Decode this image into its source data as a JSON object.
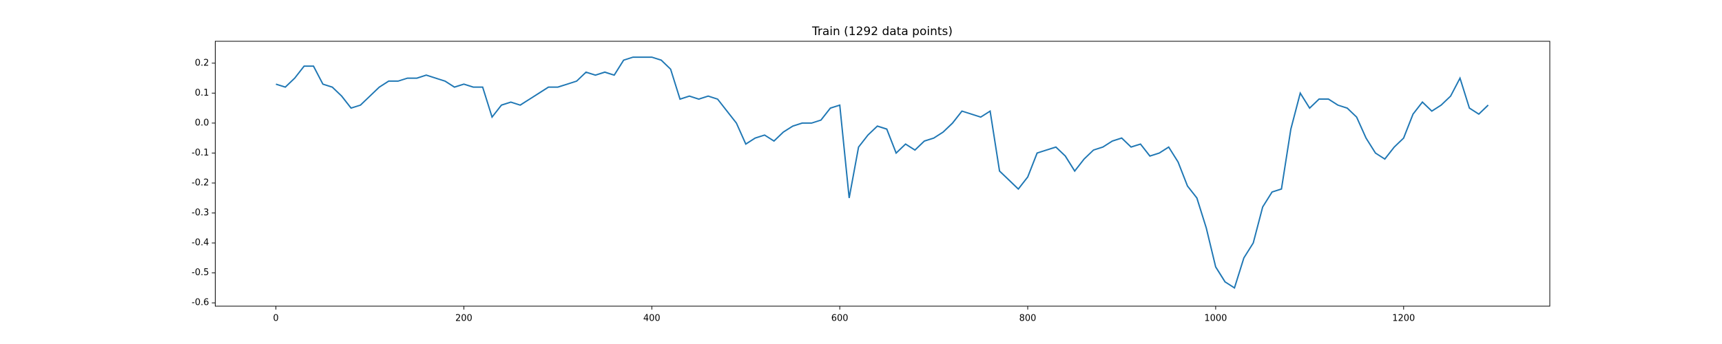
{
  "chart_data": {
    "type": "line",
    "title": "Train (1292 data points)",
    "color": "#1f77b4",
    "x": [
      0,
      10,
      20,
      30,
      40,
      50,
      60,
      70,
      80,
      90,
      100,
      110,
      120,
      130,
      140,
      150,
      160,
      170,
      180,
      190,
      200,
      210,
      220,
      230,
      240,
      250,
      260,
      270,
      280,
      290,
      300,
      310,
      320,
      330,
      340,
      350,
      360,
      370,
      380,
      390,
      400,
      410,
      420,
      430,
      440,
      450,
      460,
      470,
      480,
      490,
      500,
      510,
      520,
      530,
      540,
      550,
      560,
      570,
      580,
      590,
      600,
      610,
      620,
      630,
      640,
      650,
      660,
      670,
      680,
      690,
      700,
      710,
      720,
      730,
      740,
      750,
      760,
      770,
      780,
      790,
      800,
      810,
      820,
      830,
      840,
      850,
      860,
      870,
      880,
      890,
      900,
      910,
      920,
      930,
      940,
      950,
      960,
      970,
      980,
      990,
      1000,
      1010,
      1020,
      1030,
      1040,
      1050,
      1060,
      1070,
      1080,
      1090,
      1100,
      1110,
      1120,
      1130,
      1140,
      1150,
      1160,
      1170,
      1180,
      1190,
      1200,
      1210,
      1220,
      1230,
      1240,
      1250,
      1260,
      1270,
      1280,
      1290
    ],
    "values": [
      0.13,
      0.12,
      0.15,
      0.19,
      0.19,
      0.13,
      0.12,
      0.09,
      0.05,
      0.06,
      0.09,
      0.12,
      0.14,
      0.14,
      0.15,
      0.15,
      0.16,
      0.15,
      0.14,
      0.12,
      0.13,
      0.12,
      0.12,
      0.02,
      0.06,
      0.07,
      0.06,
      0.08,
      0.1,
      0.12,
      0.12,
      0.13,
      0.14,
      0.17,
      0.16,
      0.17,
      0.16,
      0.21,
      0.22,
      0.22,
      0.22,
      0.21,
      0.18,
      0.08,
      0.09,
      0.08,
      0.09,
      0.08,
      0.04,
      0.0,
      -0.07,
      -0.05,
      -0.04,
      -0.06,
      -0.03,
      -0.01,
      0.0,
      0.0,
      0.01,
      0.05,
      0.06,
      -0.25,
      -0.08,
      -0.04,
      -0.01,
      -0.02,
      -0.1,
      -0.07,
      -0.09,
      -0.06,
      -0.05,
      -0.03,
      0.0,
      0.04,
      0.03,
      0.02,
      0.04,
      -0.16,
      -0.19,
      -0.22,
      -0.18,
      -0.1,
      -0.09,
      -0.08,
      -0.11,
      -0.16,
      -0.12,
      -0.09,
      -0.08,
      -0.06,
      -0.05,
      -0.08,
      -0.07,
      -0.11,
      -0.1,
      -0.08,
      -0.13,
      -0.21,
      -0.25,
      -0.35,
      -0.48,
      -0.53,
      -0.55,
      -0.45,
      -0.4,
      -0.28,
      -0.23,
      -0.22,
      -0.02,
      0.1,
      0.05,
      0.08,
      0.08,
      0.06,
      0.05,
      0.02,
      -0.05,
      -0.1,
      -0.12,
      -0.08,
      -0.05,
      0.03,
      0.07,
      0.04,
      0.06,
      0.09,
      0.15,
      0.05,
      0.03,
      0.06
    ],
    "xlim": [
      -64.55,
      1355.55
    ],
    "xticks": [
      0,
      200,
      400,
      600,
      800,
      1000,
      1200
    ],
    "ylim": [
      -0.611,
      0.273
    ],
    "yticks": [
      -0.6,
      -0.5,
      -0.4,
      -0.3,
      -0.2,
      -0.1,
      {
        "value": 0,
        "label": "0.0"
      },
      0.1,
      0.2
    ],
    "grid": false
  }
}
